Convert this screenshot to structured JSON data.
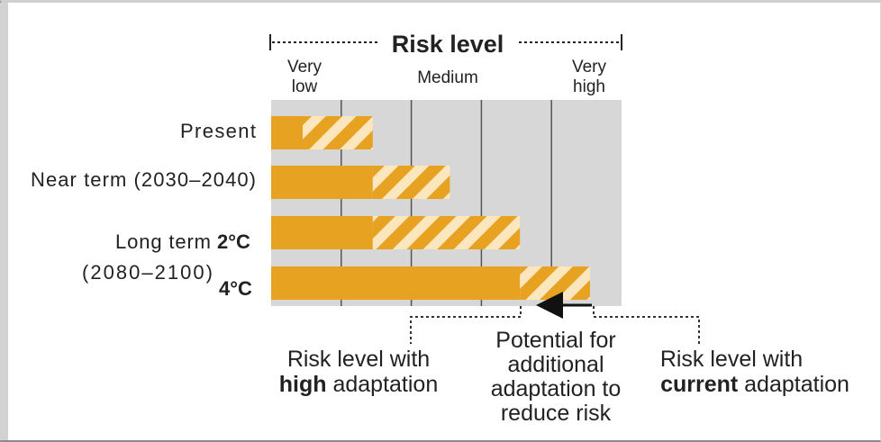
{
  "chart_data": {
    "type": "bar",
    "title": "Risk level",
    "x_axis_labels": [
      {
        "line1": "Very",
        "line2": "low"
      },
      {
        "line1": "Medium",
        "line2": ""
      },
      {
        "line1": "Very",
        "line2": "high"
      }
    ],
    "xlim": [
      0,
      5
    ],
    "grid_columns": 5,
    "categories": [
      {
        "id": "present",
        "label": "Present",
        "temp": ""
      },
      {
        "id": "near",
        "label": "Near term (2030–2040)",
        "temp": ""
      },
      {
        "id": "long2",
        "label": "Long term",
        "temp": "2°C"
      },
      {
        "id": "long4",
        "label": "(2080–2100)",
        "temp": "4°C"
      }
    ],
    "series": [
      {
        "key": "high",
        "values": [
          0.45,
          1.45,
          1.45,
          3.55
        ]
      },
      {
        "key": "current",
        "values": [
          1.45,
          2.55,
          3.55,
          4.55
        ]
      }
    ],
    "annotations": {
      "high": {
        "prefix": "Risk level with",
        "bold": "high",
        "suffix": "adaptation"
      },
      "potential": {
        "lines": [
          "Potential for",
          "additional",
          "adaptation to",
          "reduce risk"
        ]
      },
      "current": {
        "prefix": "Risk level with",
        "bold": "current",
        "suffix": "adaptation"
      }
    },
    "colors": {
      "solid": "#e8a222",
      "hatch_light": "#fbe6bd",
      "grid_bg": "#d7d7d7",
      "grid_line": "#555555",
      "text": "#222222"
    }
  }
}
